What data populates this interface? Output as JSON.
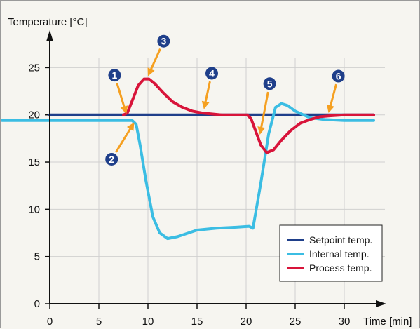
{
  "colors": {
    "background": "#f6f5f0",
    "grid": "#d0d0cf",
    "axis": "#111111",
    "setpoint": "#1f3f8a",
    "internal": "#3bbde3",
    "process": "#d8143a",
    "annotation_arrow": "#f5a021",
    "marker_fill": "#1f3f8a"
  },
  "chart_data": {
    "type": "line",
    "title": "",
    "xlabel": "Time [min]",
    "ylabel": "Temperature [°C]",
    "xlim": [
      0,
      33
    ],
    "ylim": [
      0,
      28
    ],
    "x_ticks": [
      0,
      5,
      10,
      15,
      20,
      25,
      30
    ],
    "y_ticks": [
      0,
      5,
      10,
      15,
      20,
      25
    ],
    "grid": true,
    "legend_position": "bottom-right",
    "series": [
      {
        "name": "Setpoint temp.",
        "color": "#1f3f8a",
        "x": [
          0,
          33
        ],
        "y": [
          20,
          20
        ]
      },
      {
        "name": "Internal temp.",
        "color": "#3bbde3",
        "x": [
          -5,
          8.4,
          8.8,
          9.2,
          9.8,
          10.5,
          11.2,
          12,
          13,
          15,
          17,
          19,
          20.3,
          20.7,
          21.5,
          22.3,
          23,
          23.6,
          24.2,
          25,
          26.5,
          28,
          30,
          33
        ],
        "y": [
          19.4,
          19.4,
          19.0,
          16.8,
          13.0,
          9.2,
          7.5,
          6.9,
          7.1,
          7.8,
          8.0,
          8.1,
          8.2,
          8.0,
          12.8,
          18.0,
          20.8,
          21.2,
          21.0,
          20.4,
          19.7,
          19.5,
          19.4,
          19.4
        ]
      },
      {
        "name": "Process temp.",
        "color": "#d8143a",
        "x": [
          7.5,
          7.9,
          8.4,
          9.0,
          9.6,
          10.1,
          10.7,
          11.5,
          12.5,
          13.5,
          14.5,
          15.5,
          16.5,
          17.5,
          18.5,
          20.1,
          20.5,
          21.0,
          21.5,
          22.1,
          22.8,
          23.5,
          24.5,
          25.5,
          26.5,
          27.5,
          28.5,
          30,
          33
        ],
        "y": [
          20.0,
          20.2,
          21.5,
          23.1,
          23.8,
          23.8,
          23.3,
          22.4,
          21.4,
          20.8,
          20.4,
          20.2,
          20.1,
          20.0,
          20.0,
          20.0,
          19.6,
          18.2,
          16.8,
          16.0,
          16.3,
          17.2,
          18.3,
          19.1,
          19.5,
          19.8,
          19.9,
          20.0,
          20.0
        ]
      }
    ],
    "annotations": [
      {
        "label": "1",
        "marker_x": 6.6,
        "marker_y": 24.2,
        "tip_x": 7.8,
        "tip_y": 20.1
      },
      {
        "label": "2",
        "marker_x": 6.3,
        "marker_y": 15.3,
        "tip_x": 8.6,
        "tip_y": 19.2
      },
      {
        "label": "3",
        "marker_x": 11.6,
        "marker_y": 27.8,
        "tip_x": 10.0,
        "tip_y": 24.1
      },
      {
        "label": "4",
        "marker_x": 16.5,
        "marker_y": 24.4,
        "tip_x": 15.7,
        "tip_y": 20.6
      },
      {
        "label": "5",
        "marker_x": 22.4,
        "marker_y": 23.3,
        "tip_x": 21.4,
        "tip_y": 17.9
      },
      {
        "label": "6",
        "marker_x": 29.4,
        "marker_y": 24.1,
        "tip_x": 28.4,
        "tip_y": 20.2
      }
    ]
  }
}
